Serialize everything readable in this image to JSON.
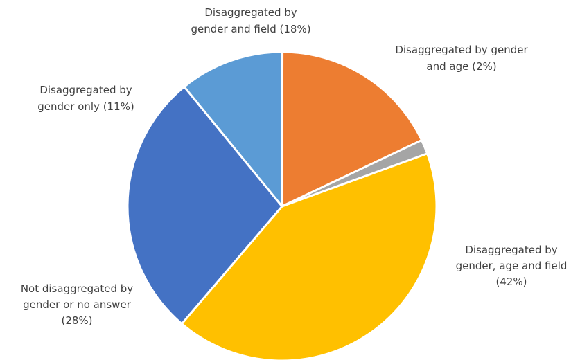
{
  "chart_data": {
    "type": "pie",
    "title": "",
    "start_angle_deg": 70,
    "direction": "clockwise",
    "slices": [
      {
        "name": "Disaggregated by gender, age and field (42%)",
        "value": 42,
        "color": "#FFC000",
        "label_lines": [
          "Disaggregated by",
          "gender, age and field",
          "(42%)"
        ]
      },
      {
        "name": "Not disaggregated by gender or no answer (28%)",
        "value": 28,
        "color": "#4472C4",
        "label_lines": [
          "Not disaggregated by",
          "gender or no answer",
          "(28%)"
        ]
      },
      {
        "name": "Disaggregated by gender only (11%)",
        "value": 11,
        "color": "#5B9BD5",
        "label_lines": [
          "Disaggregated by",
          "gender only (11%)"
        ]
      },
      {
        "name": "Disaggregated by gender and field (18%)",
        "value": 18,
        "color": "#ED7D31",
        "label_lines": [
          "Disaggregated by",
          "gender and field (18%)"
        ]
      },
      {
        "name": "Disaggregated by gender and age (2%)",
        "value": 1.5,
        "color": "#A5A5A5",
        "label_lines": [
          "Disaggregated by gender",
          "and age (2%)"
        ]
      }
    ]
  }
}
